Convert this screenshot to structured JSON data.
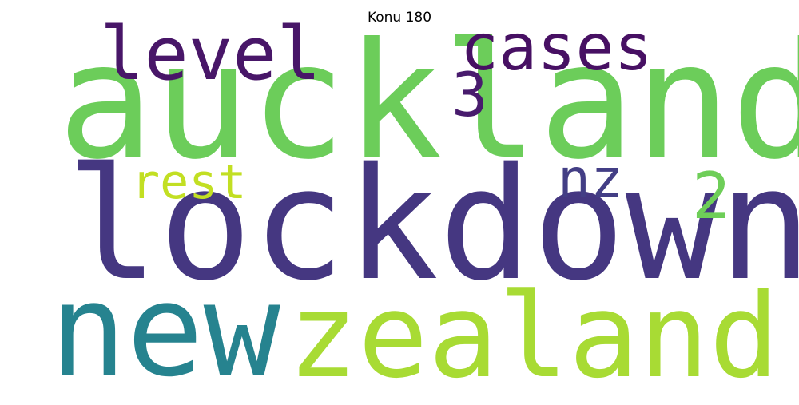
{
  "title": "Konu 180",
  "words": [
    {
      "text": "auckland",
      "color": "#6ccd5a"
    },
    {
      "text": "lockdown",
      "color": "#453781"
    },
    {
      "text": "new",
      "color": "#26838f"
    },
    {
      "text": "zealand",
      "color": "#a8db34"
    },
    {
      "text": "level",
      "color": "#481668"
    },
    {
      "text": "cases",
      "color": "#471063"
    },
    {
      "text": "3",
      "color": "#481b6d"
    },
    {
      "text": "nz",
      "color": "#433e85"
    },
    {
      "text": "2",
      "color": "#6ece58"
    },
    {
      "text": "rest",
      "color": "#c2df23"
    }
  ]
}
